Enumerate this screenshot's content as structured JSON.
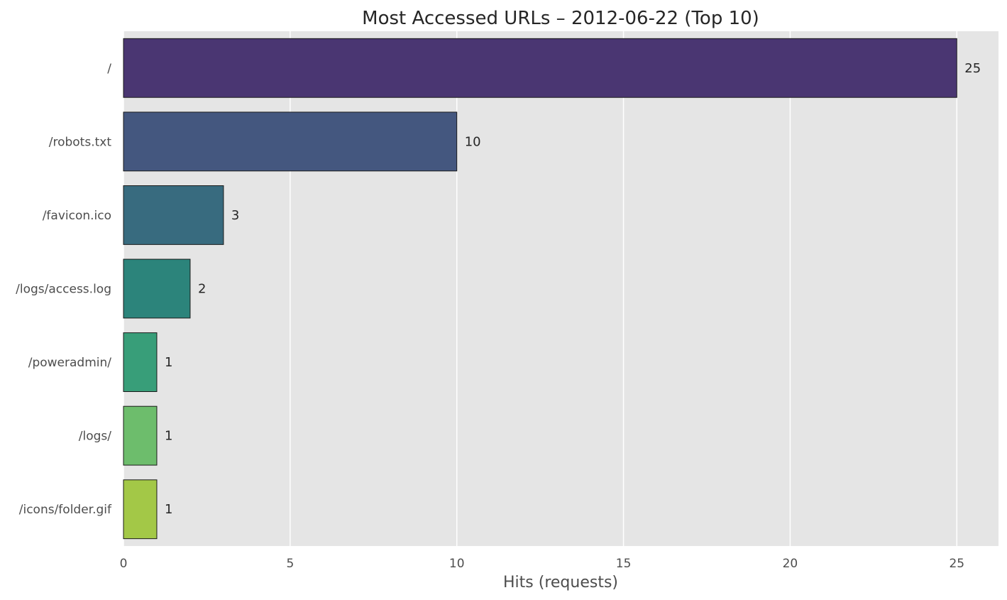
{
  "chart_data": {
    "type": "bar",
    "orientation": "horizontal",
    "title": "Most Accessed URLs – 2012-06-22 (Top 10)",
    "xlabel": "Hits (requests)",
    "ylabel": "",
    "categories": [
      "/",
      "/robots.txt",
      "/favicon.ico",
      "/logs/access.log",
      "/poweradmin/",
      "/logs/",
      "/icons/folder.gif"
    ],
    "values": [
      25,
      10,
      3,
      2,
      1,
      1,
      1
    ],
    "data_labels": [
      "25",
      "10",
      "3",
      "2",
      "1",
      "1",
      "1"
    ],
    "colors": [
      "#4a3672",
      "#44577f",
      "#386b7f",
      "#2c847b",
      "#389e79",
      "#6dbd6c",
      "#a3c847"
    ],
    "xlim": [
      0,
      26.25
    ],
    "xticks": [
      0,
      5,
      10,
      15,
      20,
      25
    ],
    "xtick_labels": [
      "0",
      "5",
      "10",
      "15",
      "20",
      "25"
    ],
    "grid": "vertical",
    "background": "#e5e5e5"
  }
}
